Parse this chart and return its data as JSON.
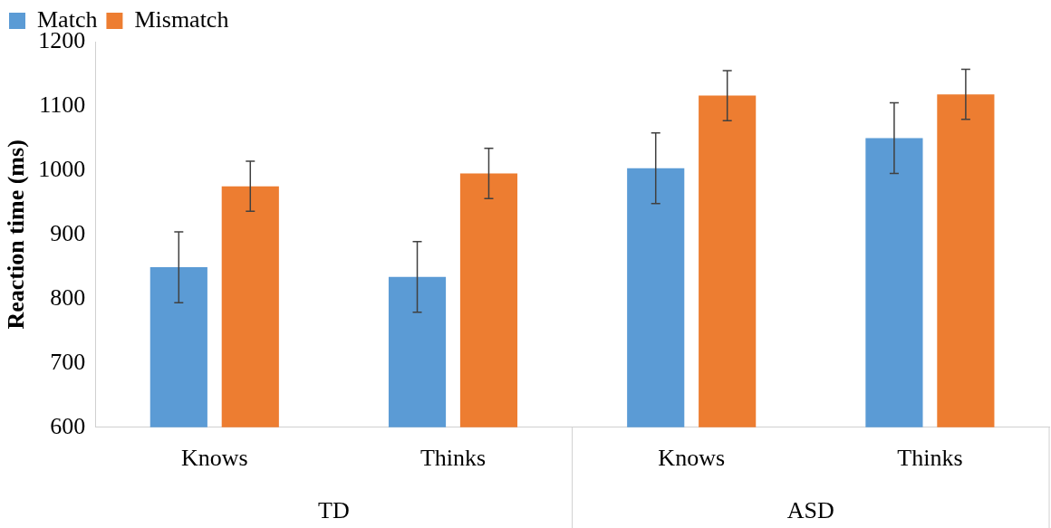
{
  "chart_data": {
    "type": "bar",
    "ylabel": "Reaction time (ms)",
    "categories": [
      "Knows",
      "Thinks",
      "Knows",
      "Thinks"
    ],
    "series": [
      {
        "name": "Match",
        "color": "#5b9bd5",
        "values": [
          849,
          834,
          1003,
          1050
        ],
        "errors": [
          55,
          55,
          55,
          55
        ]
      },
      {
        "name": "Mismatch",
        "color": "#ed7d31",
        "values": [
          975,
          995,
          1116,
          1118
        ],
        "errors": [
          39,
          39,
          39,
          39
        ]
      }
    ],
    "annotations": [
      "TD",
      "ASD"
    ],
    "ylim": [
      600,
      1200
    ],
    "yticks": [
      600,
      700,
      800,
      900,
      1000,
      1100,
      1200
    ],
    "grid": false,
    "legend": "top left"
  }
}
